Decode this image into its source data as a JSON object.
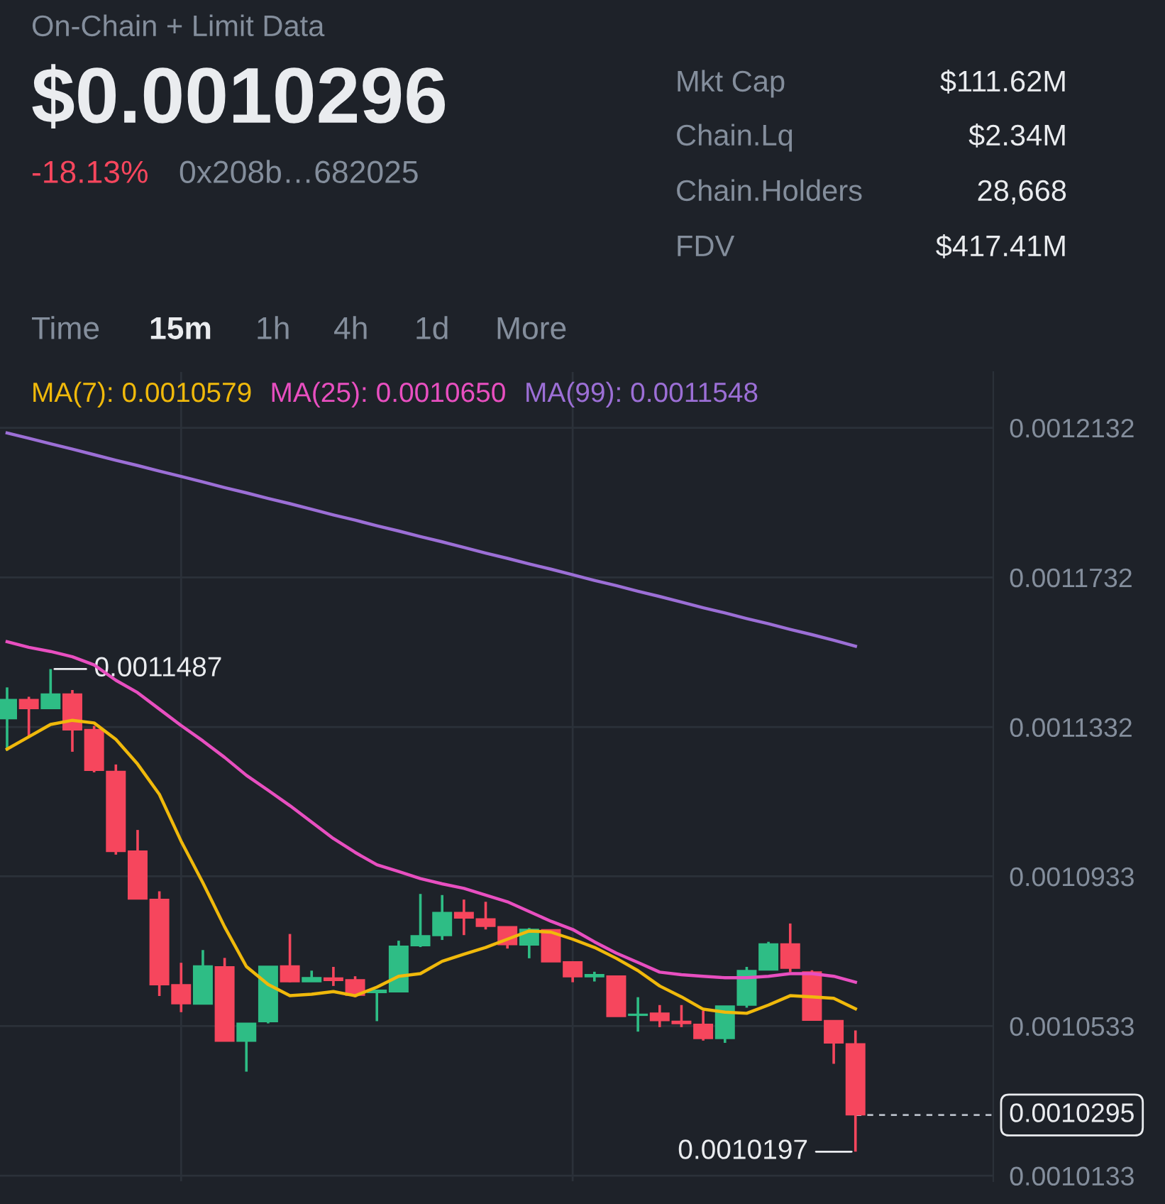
{
  "chart_data": {
    "type": "candlestick",
    "categories": [
      null,
      null,
      null,
      null,
      null,
      null,
      null,
      null,
      null,
      null,
      null,
      null,
      null,
      null,
      null,
      null,
      null,
      null,
      null,
      null,
      null,
      null,
      null,
      null,
      null,
      null,
      null,
      null,
      null,
      null,
      null,
      null,
      null,
      null,
      null,
      null,
      null,
      null,
      null,
      null
    ],
    "ohlc": [
      [
        0.0011355,
        0.0011438,
        0.0011269,
        0.0011405
      ],
      [
        0.0011405,
        0.0011413,
        0.0011306,
        0.0011382
      ],
      [
        0.0011382,
        0.0011487,
        0.0011382,
        0.001142
      ],
      [
        0.001142,
        0.0011431,
        0.0011266,
        0.0011325
      ],
      [
        0.0011325,
        0.0011335,
        0.0011211,
        0.0011217
      ],
      [
        0.0011213,
        0.0011232,
        0.0010991,
        0.0011
      ],
      [
        0.0011,
        0.0011057,
        0.0010873,
        0.0010873
      ],
      [
        0.0010871,
        0.0010893,
        0.0010613,
        0.0010644
      ],
      [
        0.0010643,
        0.0010702,
        0.001057,
        0.0010593
      ],
      [
        0.0010592,
        0.0010736,
        0.0010592,
        0.0010693
      ],
      [
        0.0010691,
        0.0010715,
        0.0010493,
        0.0010493
      ],
      [
        0.0010493,
        0.001054,
        0.0010411,
        0.001054
      ],
      [
        0.0010545,
        0.0010692,
        0.001054,
        0.0010692
      ],
      [
        0.0010693,
        0.0010779,
        0.001065,
        0.0010652
      ],
      [
        0.0010652,
        0.0010681,
        0.0010652,
        0.0010662
      ],
      [
        0.0010661,
        0.0010691,
        0.001064,
        0.0010655
      ],
      [
        0.0010656,
        0.0010666,
        0.001061,
        0.0010616
      ],
      [
        0.0010623,
        0.0010629,
        0.0010546,
        0.0010628
      ],
      [
        0.0010625,
        0.0010761,
        0.0010625,
        0.0010746
      ],
      [
        0.0010748,
        0.0010886,
        0.0010744,
        0.0010774
      ],
      [
        0.0010775,
        0.0010883,
        0.0010763,
        0.0010836
      ],
      [
        0.0010836,
        0.0010871,
        0.0010776,
        0.0010822
      ],
      [
        0.0010819,
        0.0010865,
        0.0010791,
        0.00108
      ],
      [
        0.0010798,
        0.0010798,
        0.001074,
        0.0010751
      ],
      [
        0.001075,
        0.0010795,
        0.0010714,
        0.0010791
      ],
      [
        0.001079,
        0.001079,
        0.0010705,
        0.0010705
      ],
      [
        0.0010704,
        0.0010704,
        0.001065,
        0.0010665
      ],
      [
        0.0010665,
        0.0010678,
        0.0010652,
        0.001067
      ],
      [
        0.0010666,
        0.0010666,
        0.0010559,
        0.0010559
      ],
      [
        0.0010562,
        0.001061,
        0.0010518,
        0.0010564
      ],
      [
        0.0010567,
        0.0010589,
        0.001053,
        0.0010548
      ],
      [
        0.0010545,
        0.0010589,
        0.001053,
        0.001054
      ],
      [
        0.0010537,
        0.0010574,
        0.0010494,
        0.00105
      ],
      [
        0.00105,
        0.0010586,
        0.0010488,
        0.0010586
      ],
      [
        0.0010589,
        0.0010691,
        0.0010582,
        0.0010681
      ],
      [
        0.0010683,
        0.0010758,
        0.0010683,
        0.0010752
      ],
      [
        0.0010752,
        0.0010807,
        0.0010677,
        0.0010688
      ],
      [
        0.0010677,
        0.0010682,
        0.0010549,
        0.0010549
      ],
      [
        0.0010547,
        0.0010547,
        0.0010432,
        0.0010488
      ],
      [
        0.0010485,
        0.0010521,
        0.0010197,
        0.0010296
      ]
    ],
    "colors": [
      "#2ebd85",
      "#f6465d",
      "#2ebd85",
      "#f6465d",
      "#f6465d",
      "#f6465d",
      "#f6465d",
      "#f6465d",
      "#f6465d",
      "#2ebd85",
      "#f6465d",
      "#2ebd85",
      "#2ebd85",
      "#f6465d",
      "#2ebd85",
      "#f6465d",
      "#f6465d",
      "#2ebd85",
      "#2ebd85",
      "#2ebd85",
      "#2ebd85",
      "#f6465d",
      "#f6465d",
      "#f6465d",
      "#2ebd85",
      "#f6465d",
      "#f6465d",
      "#2ebd85",
      "#f6465d",
      "#2ebd85",
      "#f6465d",
      "#f6465d",
      "#f6465d",
      "#2ebd85",
      "#2ebd85",
      "#2ebd85",
      "#f6465d",
      "#f6465d",
      "#f6465d",
      "#f6465d"
    ],
    "series": [
      {
        "name": "MA(7): 0.0010579",
        "type": "line",
        "color": "#f0b90b",
        "values": [
          0.0011273,
          0.0011306,
          0.0011339,
          0.001135,
          0.0011343,
          0.0011299,
          0.0011233,
          0.0011152,
          0.0011027,
          0.0010916,
          0.0010798,
          0.0010692,
          0.0010644,
          0.0010614,
          0.0010618,
          0.0010625,
          0.0010614,
          0.0010637,
          0.0010666,
          0.0010673,
          0.0010706,
          0.0010725,
          0.0010743,
          0.0010765,
          0.0010787,
          0.0010784,
          0.0010765,
          0.0010743,
          0.0010714,
          0.0010681,
          0.001064,
          0.0010611,
          0.0010578,
          0.001057,
          0.0010567,
          0.0010589,
          0.0010614,
          0.0010611,
          0.0010607,
          0.0010579
        ]
      },
      {
        "name": "MA(25): 0.0010650",
        "type": "line",
        "color": "#e84fc0",
        "values": [
          0.001156,
          0.0011545,
          0.0011534,
          0.001152,
          0.0011498,
          0.0011457,
          0.0011424,
          0.001138,
          0.0011336,
          0.0011295,
          0.0011251,
          0.0011203,
          0.0011163,
          0.0011122,
          0.0011078,
          0.0011034,
          0.0010997,
          0.0010964,
          0.0010946,
          0.0010927,
          0.0010913,
          0.0010901,
          0.0010883,
          0.0010865,
          0.0010839,
          0.0010813,
          0.0010791,
          0.0010758,
          0.0010728,
          0.0010703,
          0.0010677,
          0.001067,
          0.0010666,
          0.0010662,
          0.0010662,
          0.0010666,
          0.0010673,
          0.0010673,
          0.0010666,
          0.001065
        ]
      },
      {
        "name": "MA(99): 0.0011548",
        "type": "line",
        "color": "#9c6fd6",
        "values": [
          0.0012118,
          0.0012104,
          0.0012089,
          0.0012075,
          0.001206,
          0.0012045,
          0.0012031,
          0.0012016,
          0.0012002,
          0.0011987,
          0.0011972,
          0.0011958,
          0.0011943,
          0.0011929,
          0.0011914,
          0.0011899,
          0.0011885,
          0.001187,
          0.0011856,
          0.0011841,
          0.0011827,
          0.0011812,
          0.0011797,
          0.0011783,
          0.0011768,
          0.0011754,
          0.0011739,
          0.0011724,
          0.001171,
          0.0011695,
          0.0011681,
          0.0011666,
          0.0011651,
          0.0011637,
          0.0011622,
          0.0011608,
          0.0011593,
          0.0011579,
          0.0011564,
          0.0011548
        ]
      }
    ],
    "ylim": [
      0.0010118,
      0.0012281
    ],
    "yticks": [
      {
        "value": 0.0010133,
        "label": "0.0010133"
      },
      {
        "value": 0.0010533,
        "label": "0.0010533"
      },
      {
        "value": 0.0010933,
        "label": "0.0010933"
      },
      {
        "value": 0.0011332,
        "label": "0.0011332"
      },
      {
        "value": 0.0011732,
        "label": "0.0011732"
      },
      {
        "value": 0.0012132,
        "label": "0.0012132"
      }
    ],
    "grid": true,
    "legend": "top",
    "tick_labels": "y",
    "ref_lines": [
      {
        "axis": "y",
        "value": 0.0010295,
        "label": "0.0010295",
        "line_style": "dashed",
        "color": "#b7bdc6"
      }
    ],
    "annotations": [
      "0.0011487",
      "0.0010197",
      "On-Chain + Limit Data",
      "$0.0010296",
      "-18.13%",
      "0x208b…682025",
      "Mkt Cap",
      "$111.62M",
      "Chain.Lq",
      "$2.34M",
      "Chain.Holders",
      "28,668",
      "FDV",
      "$417.41M",
      "Time",
      "15m",
      "1h",
      "4h",
      "1d",
      "More"
    ]
  }
}
